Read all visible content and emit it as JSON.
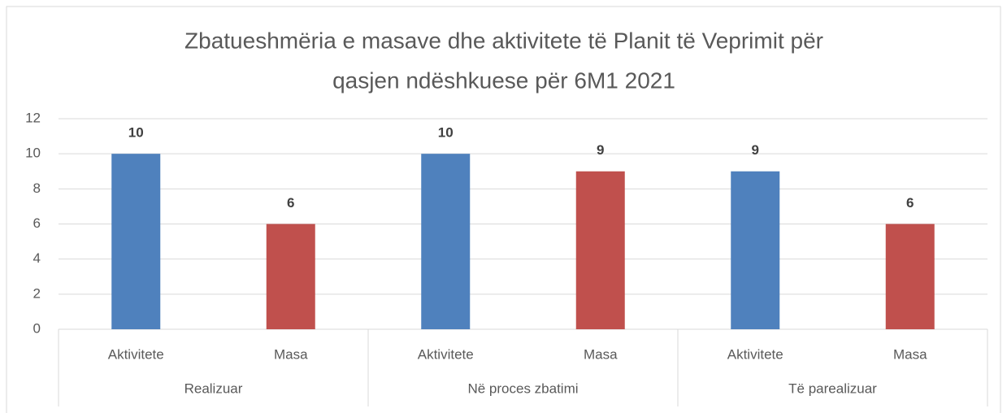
{
  "chart_data": {
    "type": "bar",
    "title": [
      "Zbatueshmëria e masave dhe aktivitete të Planit të Veprimit për",
      "qasjen ndëshkuese për 6M1 2021"
    ],
    "groups": [
      "Realizuar",
      "Në proces zbatimi",
      "Të parealizuar"
    ],
    "categories": [
      "Aktivitete",
      "Masa",
      "Aktivitete",
      "Masa",
      "Aktivitete",
      "Masa"
    ],
    "values": [
      10,
      6,
      10,
      9,
      9,
      6
    ],
    "colors": [
      "#4f81bd",
      "#c0504d",
      "#4f81bd",
      "#c0504d",
      "#4f81bd",
      "#c0504d"
    ],
    "ylim": [
      0,
      12
    ],
    "yticks": [
      0,
      2,
      4,
      6,
      8,
      10,
      12
    ],
    "grid": true
  }
}
